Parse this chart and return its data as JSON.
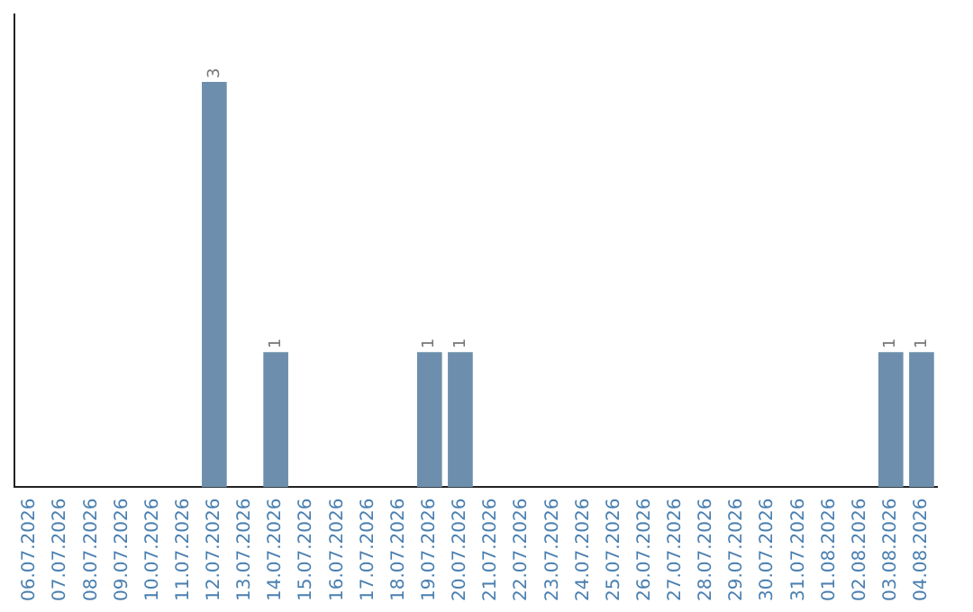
{
  "chart_data": {
    "type": "bar",
    "categories": [
      "06.07.2026",
      "07.07.2026",
      "08.07.2026",
      "09.07.2026",
      "10.07.2026",
      "11.07.2026",
      "12.07.2026",
      "13.07.2026",
      "14.07.2026",
      "15.07.2026",
      "16.07.2026",
      "17.07.2026",
      "18.07.2026",
      "19.07.2026",
      "20.07.2026",
      "21.07.2026",
      "22.07.2026",
      "23.07.2026",
      "24.07.2026",
      "25.07.2026",
      "26.07.2026",
      "27.07.2026",
      "28.07.2026",
      "29.07.2026",
      "30.07.2026",
      "31.07.2026",
      "01.08.2026",
      "02.08.2026",
      "03.08.2026",
      "04.08.2026"
    ],
    "values": [
      0,
      0,
      0,
      0,
      0,
      0,
      3,
      0,
      1,
      0,
      0,
      0,
      0,
      1,
      1,
      0,
      0,
      0,
      0,
      0,
      0,
      0,
      0,
      0,
      0,
      0,
      0,
      0,
      1,
      1
    ],
    "value_labels": [
      null,
      null,
      null,
      null,
      null,
      null,
      "3",
      null,
      "1",
      null,
      null,
      null,
      null,
      "1",
      "1",
      null,
      null,
      null,
      null,
      null,
      null,
      null,
      null,
      null,
      null,
      null,
      null,
      null,
      "1",
      "1"
    ],
    "color": "#6d8fad",
    "relative": false,
    "grid": false,
    "legend": false,
    "tick_labels": "x"
  }
}
